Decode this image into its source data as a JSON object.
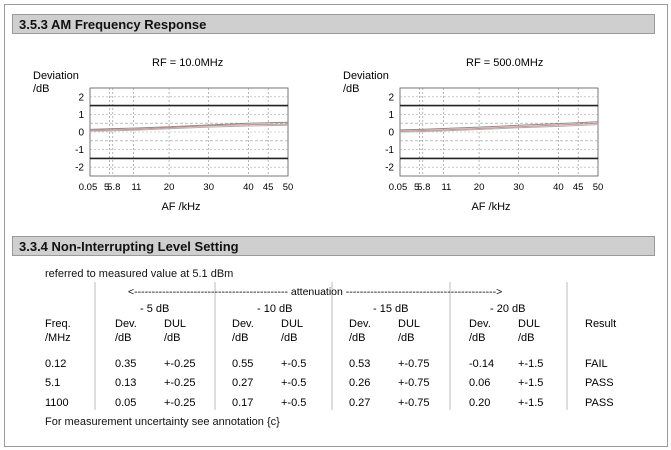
{
  "sections": {
    "am_title": "3.5.3 AM Frequency Response",
    "nil_title": "3.3.4 Non-Interrupting Level Setting"
  },
  "chart_data": [
    {
      "type": "line",
      "title": "RF = 10.0MHz",
      "ylabel_line1": "Deviation",
      "ylabel_line2": "/dB",
      "xlabel": "AF /kHz",
      "xlim": [
        0.05,
        50
      ],
      "ylim": [
        -2.5,
        2.5
      ],
      "x_ticks": [
        0.05,
        5,
        5.8,
        11,
        20,
        30,
        40,
        45,
        50
      ],
      "x_tick_labels": [
        "0.05",
        "5",
        "5.8",
        "11",
        "20",
        "30",
        "40",
        "45",
        "50"
      ],
      "y_ticks": [
        2,
        1,
        0,
        -1,
        -2
      ],
      "y_tick_labels": [
        "2",
        "1",
        "0",
        "-1",
        "-2"
      ],
      "limit_lines": [
        1.5,
        -1.5
      ],
      "tolerance_lines": [
        0.5,
        -0.5
      ],
      "series": [
        {
          "color": "#d98a8a",
          "x": [
            0.05,
            5,
            11,
            20,
            30,
            40,
            50
          ],
          "y": [
            0.1,
            0.12,
            0.15,
            0.25,
            0.35,
            0.42,
            0.45
          ]
        },
        {
          "color": "#8c8c8c",
          "x": [
            0.05,
            5,
            11,
            20,
            30,
            40,
            50
          ],
          "y": [
            0.15,
            0.18,
            0.22,
            0.3,
            0.4,
            0.5,
            0.55
          ]
        },
        {
          "color": "#b0b0b0",
          "x": [
            0.05,
            5,
            11,
            20,
            30,
            40,
            50
          ],
          "y": [
            0.05,
            0.06,
            0.1,
            0.18,
            0.28,
            0.34,
            0.38
          ]
        }
      ]
    },
    {
      "type": "line",
      "title": "RF = 500.0MHz",
      "ylabel_line1": "Deviation",
      "ylabel_line2": "/dB",
      "xlabel": "AF /kHz",
      "xlim": [
        0.05,
        50
      ],
      "ylim": [
        -2.5,
        2.5
      ],
      "x_ticks": [
        0.05,
        5,
        5.8,
        11,
        20,
        30,
        40,
        45,
        50
      ],
      "x_tick_labels": [
        "0.05",
        "5",
        "5.8",
        "11",
        "20",
        "30",
        "40",
        "45",
        "50"
      ],
      "y_ticks": [
        2,
        1,
        0,
        -1,
        -2
      ],
      "y_tick_labels": [
        "2",
        "1",
        "0",
        "-1",
        "-2"
      ],
      "limit_lines": [
        1.5,
        -1.5
      ],
      "tolerance_lines": [
        0.5,
        -0.5
      ],
      "series": [
        {
          "color": "#d98a8a",
          "x": [
            0.05,
            5,
            11,
            20,
            30,
            40,
            50
          ],
          "y": [
            0.05,
            0.08,
            0.12,
            0.2,
            0.3,
            0.4,
            0.5
          ]
        },
        {
          "color": "#8c8c8c",
          "x": [
            0.05,
            5,
            11,
            20,
            30,
            40,
            50
          ],
          "y": [
            0.12,
            0.15,
            0.2,
            0.28,
            0.38,
            0.48,
            0.58
          ]
        },
        {
          "color": "#b0b0b0",
          "x": [
            0.05,
            5,
            11,
            20,
            30,
            40,
            50
          ],
          "y": [
            0.0,
            0.02,
            0.06,
            0.14,
            0.24,
            0.32,
            0.42
          ]
        }
      ]
    }
  ],
  "table": {
    "note": "referred to measured value at 5.1 dBm",
    "attenuation_label": "<-------------------------------------------- attenuation ------------------------------------------->",
    "groups": [
      "- 5 dB",
      "- 10 dB",
      "- 15 dB",
      "- 20 dB"
    ],
    "col_freq": [
      "Freq.",
      "/MHz"
    ],
    "col_dev": [
      "Dev.",
      "/dB"
    ],
    "col_dul": [
      "DUL",
      "/dB"
    ],
    "col_result": "Result",
    "rows": [
      {
        "freq": "0.12",
        "cells": [
          [
            "0.35",
            "+-0.25"
          ],
          [
            "0.55",
            "+-0.5"
          ],
          [
            "0.53",
            "+-0.75"
          ],
          [
            "-0.14",
            "+-1.5"
          ]
        ],
        "result": "FAIL"
      },
      {
        "freq": "5.1",
        "cells": [
          [
            "0.13",
            "+-0.25"
          ],
          [
            "0.27",
            "+-0.5"
          ],
          [
            "0.26",
            "+-0.75"
          ],
          [
            "0.06",
            "+-1.5"
          ]
        ],
        "result": "PASS"
      },
      {
        "freq": "1100",
        "cells": [
          [
            "0.05",
            "+-0.25"
          ],
          [
            "0.17",
            "+-0.5"
          ],
          [
            "0.27",
            "+-0.75"
          ],
          [
            "0.20",
            "+-1.5"
          ]
        ],
        "result": "PASS"
      }
    ],
    "footer": "For measurement uncertainty see annotation {c}"
  }
}
